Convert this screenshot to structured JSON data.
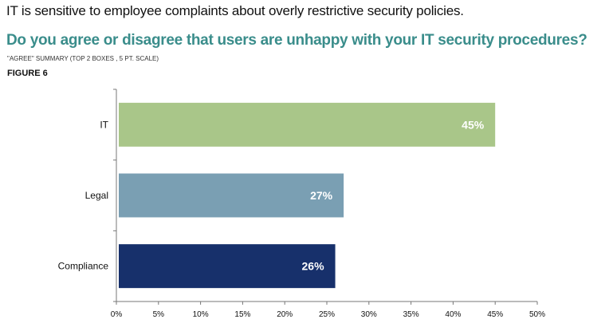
{
  "intro": "IT is sensitive to employee complaints about overly restrictive security policies.",
  "question": "Do you agree or disagree that users are unhappy with your IT security procedures?",
  "summary": "\"Agree\" summary (top 2 boxes , 5 pt. scale)",
  "figure_label": "FIGURE 6",
  "chart_data": {
    "type": "bar",
    "orientation": "horizontal",
    "title": "Do you agree or disagree that users are unhappy with your IT security procedures?",
    "categories": [
      "IT",
      "Legal",
      "Compliance"
    ],
    "values": [
      45,
      27,
      26
    ],
    "data_labels": [
      "45%",
      "27%",
      "26%"
    ],
    "colors": [
      "#a9c689",
      "#7a9fb3",
      "#17306b"
    ],
    "xlim": [
      0,
      50
    ],
    "xticks": [
      0,
      5,
      10,
      15,
      20,
      25,
      30,
      35,
      40,
      45,
      50
    ],
    "xtick_labels": [
      "0%",
      "5%",
      "10%",
      "15%",
      "20%",
      "25%",
      "30%",
      "35%",
      "40%",
      "45%",
      "50%"
    ],
    "xlabel": "",
    "ylabel": "",
    "grid": false,
    "legend": "none"
  }
}
